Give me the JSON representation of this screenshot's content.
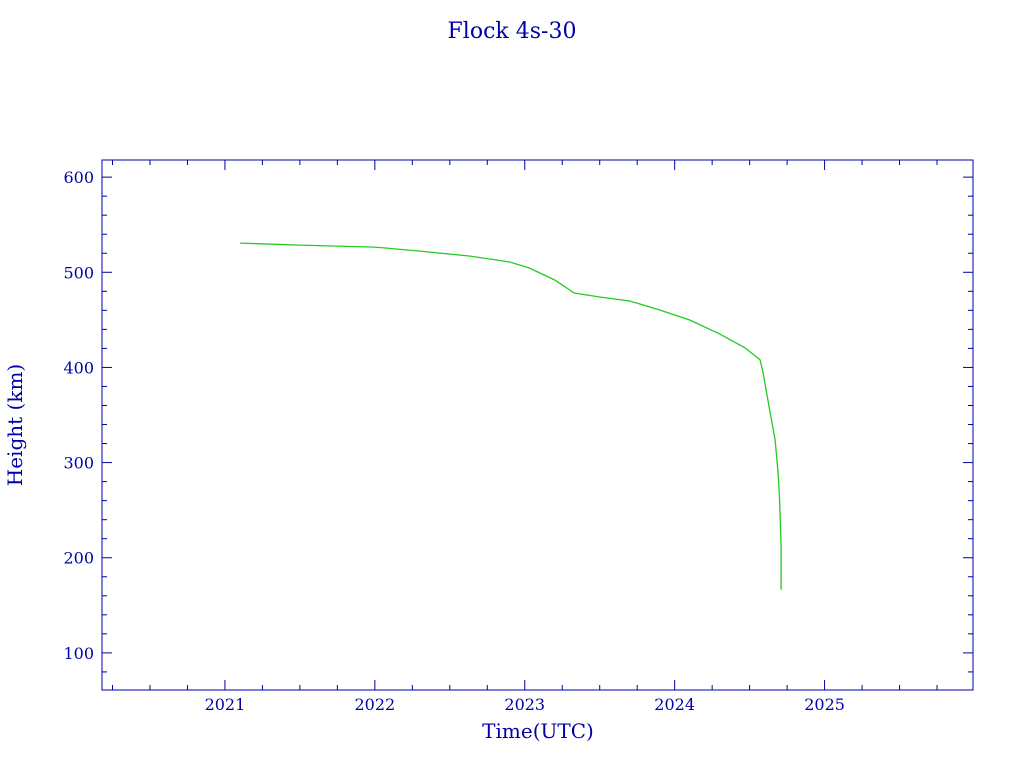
{
  "chart_data": {
    "type": "line",
    "title": "Flock 4s-30",
    "xlabel": "Time(UTC)",
    "ylabel": "Height (km)",
    "xlim": [
      2020.18,
      2025.99
    ],
    "ylim": [
      61,
      618
    ],
    "x_ticks": [
      2021,
      2022,
      2023,
      2024,
      2025
    ],
    "y_ticks": [
      100,
      200,
      300,
      400,
      500,
      600
    ],
    "grid": false,
    "colors": {
      "axes": "#0000a8",
      "line": "#22cc22"
    },
    "series": [
      {
        "x": [
          2021.1,
          2021.5,
          2022.0,
          2022.3,
          2022.63,
          2022.9,
          2023.03,
          2023.2,
          2023.33,
          2023.5,
          2023.7,
          2023.9,
          2024.1,
          2024.3,
          2024.47,
          2024.57,
          2024.59,
          2024.63,
          2024.67,
          2024.69,
          2024.7,
          2024.71,
          2024.71
        ],
        "y": [
          530.7,
          528.6,
          526.5,
          522.3,
          517.1,
          510.8,
          504.5,
          491.9,
          478.2,
          474.0,
          469.8,
          460.4,
          449.9,
          435.2,
          420.5,
          407.9,
          394.2,
          358.5,
          323.9,
          289.2,
          260.9,
          211.5,
          166.4
        ]
      }
    ]
  }
}
